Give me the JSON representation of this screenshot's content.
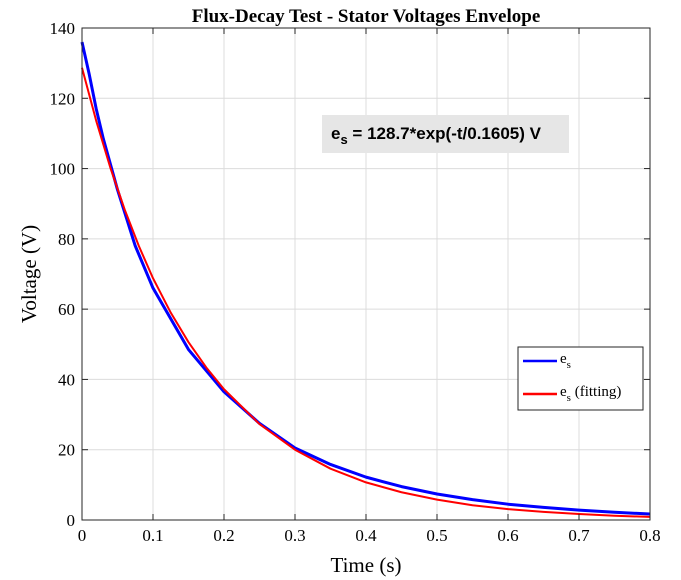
{
  "chart_data": {
    "type": "line",
    "title": "Flux-Decay Test - Stator Voltages Envelope",
    "xlabel": "Time (s)",
    "ylabel": "Voltage (V)",
    "xlim": [
      0,
      0.8
    ],
    "ylim": [
      0,
      140
    ],
    "xticks": [
      0,
      0.1,
      0.2,
      0.3,
      0.4,
      0.5,
      0.6,
      0.7,
      0.8
    ],
    "xtick_labels": [
      "0",
      "0.1",
      "0.2",
      "0.3",
      "0.4",
      "0.5",
      "0.6",
      "0.7",
      "0.8"
    ],
    "yticks": [
      0,
      20,
      40,
      60,
      80,
      100,
      120,
      140
    ],
    "ytick_labels": [
      "0",
      "20",
      "40",
      "60",
      "80",
      "100",
      "120",
      "140"
    ],
    "grid": true,
    "legend_position": "lower-right",
    "annotation": {
      "prefix": "e",
      "subscript": "s",
      "expression": " = 128.7*exp(-t/0.1605) V"
    },
    "series": [
      {
        "name": "e",
        "name_subscript": "s",
        "name_suffix": "",
        "color": "#0000ff",
        "x": [
          0,
          0.01,
          0.02,
          0.03,
          0.05,
          0.075,
          0.1,
          0.15,
          0.2,
          0.25,
          0.3,
          0.35,
          0.4,
          0.45,
          0.5,
          0.55,
          0.6,
          0.65,
          0.7,
          0.75,
          0.8
        ],
        "y": [
          136,
          127,
          117,
          108.5,
          94,
          78,
          66,
          48.5,
          36.5,
          27.5,
          20.5,
          15.8,
          12.2,
          9.5,
          7.4,
          5.8,
          4.5,
          3.6,
          2.8,
          2.2,
          1.7
        ]
      },
      {
        "name": "e",
        "name_subscript": "s",
        "name_suffix": " (fitting)",
        "color": "#ff0000",
        "x": [
          0,
          0.02,
          0.04,
          0.06,
          0.08,
          0.1,
          0.125,
          0.15,
          0.175,
          0.2,
          0.25,
          0.3,
          0.35,
          0.4,
          0.45,
          0.5,
          0.55,
          0.6,
          0.65,
          0.7,
          0.75,
          0.8
        ],
        "y": [
          128.7,
          113.6,
          100.2,
          88.4,
          78.0,
          68.8,
          59.0,
          50.6,
          43.4,
          37.2,
          27.3,
          20.0,
          14.6,
          10.7,
          7.9,
          5.8,
          4.2,
          3.1,
          2.3,
          1.7,
          1.2,
          0.88
        ]
      }
    ]
  }
}
